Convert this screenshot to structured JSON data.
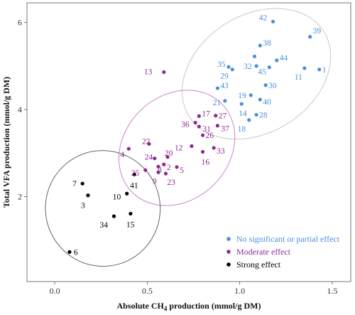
{
  "chart_data": {
    "type": "scatter",
    "xlabel": "Absolute CH4 production (mmol/g DM)",
    "xlabel_parts": {
      "prefix": "Absolute CH",
      "subscript": "4",
      "suffix": " production (mmol/g DM)"
    },
    "ylabel": "Total VFA production (mmol/g DM)",
    "xlim": [
      -0.15,
      1.6
    ],
    "ylim": [
      0.05,
      6.45
    ],
    "xticks": [
      0.0,
      0.5,
      1.0,
      1.5
    ],
    "xtick_labels": [
      "0.0",
      "0.5",
      "1.0",
      "1.5"
    ],
    "yticks": [
      2,
      4,
      6
    ],
    "ytick_labels": [
      "2",
      "4",
      "6"
    ],
    "grid": false,
    "legend_position": "bottom-right",
    "series": [
      {
        "name": "No significant or partial effect",
        "color": "#4A90D9",
        "ellipse_color": "#c8c8c8",
        "points": [
          {
            "label": "1",
            "x": 1.43,
            "y": 4.92
          },
          {
            "label": "11",
            "x": 1.35,
            "y": 4.95
          },
          {
            "label": "39",
            "x": 1.38,
            "y": 5.67
          },
          {
            "label": "42",
            "x": 1.18,
            "y": 6.02
          },
          {
            "label": "38",
            "x": 1.11,
            "y": 5.47
          },
          {
            "label": "44",
            "x": 1.2,
            "y": 5.13
          },
          {
            "label": "37b",
            "x": 1.08,
            "y": 5.22
          },
          {
            "label": "35",
            "x": 0.94,
            "y": 4.98
          },
          {
            "label": "32",
            "x": 1.09,
            "y": 5.0
          },
          {
            "label": "45",
            "x": 1.16,
            "y": 4.97
          },
          {
            "label": "29",
            "x": 0.96,
            "y": 4.92
          },
          {
            "label": "43",
            "x": 0.88,
            "y": 4.49
          },
          {
            "label": "30",
            "x": 1.14,
            "y": 4.56
          },
          {
            "label": "19",
            "x": 1.06,
            "y": 4.33
          },
          {
            "label": "40",
            "x": 1.11,
            "y": 4.23
          },
          {
            "label": "21",
            "x": 0.92,
            "y": 4.2
          },
          {
            "label": "14",
            "x": 1.01,
            "y": 4.13
          },
          {
            "label": "28",
            "x": 1.09,
            "y": 3.88
          },
          {
            "label": "18",
            "x": 1.05,
            "y": 3.76
          }
        ]
      },
      {
        "name": "Moderate effect",
        "color": "#8E2A8E",
        "ellipse_color": "#c987c9",
        "points": [
          {
            "label": "13",
            "x": 0.59,
            "y": 4.86
          },
          {
            "label": "17",
            "x": 0.78,
            "y": 3.85
          },
          {
            "label": "27",
            "x": 0.87,
            "y": 3.86
          },
          {
            "label": "36",
            "x": 0.76,
            "y": 3.7
          },
          {
            "label": "31",
            "x": 0.78,
            "y": 3.61
          },
          {
            "label": "37",
            "x": 0.88,
            "y": 3.63
          },
          {
            "label": "26",
            "x": 0.8,
            "y": 3.41
          },
          {
            "label": "12",
            "x": 0.74,
            "y": 3.16
          },
          {
            "label": "33",
            "x": 0.86,
            "y": 3.12
          },
          {
            "label": "16",
            "x": 0.8,
            "y": 3.03
          },
          {
            "label": "22",
            "x": 0.51,
            "y": 3.21
          },
          {
            "label": "4",
            "x": 0.4,
            "y": 3.1
          },
          {
            "label": "24",
            "x": 0.54,
            "y": 2.88
          },
          {
            "label": "20",
            "x": 0.61,
            "y": 2.91
          },
          {
            "label": "25",
            "x": 0.49,
            "y": 2.61
          },
          {
            "label": "8",
            "x": 0.56,
            "y": 2.69
          },
          {
            "label": "2",
            "x": 0.59,
            "y": 2.74
          },
          {
            "label": "5",
            "x": 0.66,
            "y": 2.68
          },
          {
            "label": "9",
            "x": 0.56,
            "y": 2.56
          },
          {
            "label": "23",
            "x": 0.6,
            "y": 2.53
          }
        ]
      },
      {
        "name": "Strong effect",
        "color": "#000000",
        "ellipse_color": "#666666",
        "points": [
          {
            "label": "41",
            "x": 0.43,
            "y": 2.51
          },
          {
            "label": "7",
            "x": 0.15,
            "y": 2.3
          },
          {
            "label": "10",
            "x": 0.39,
            "y": 2.07
          },
          {
            "label": "3",
            "x": 0.18,
            "y": 2.03
          },
          {
            "label": "34",
            "x": 0.32,
            "y": 1.55
          },
          {
            "label": "15",
            "x": 0.41,
            "y": 1.61
          },
          {
            "label": "6",
            "x": 0.08,
            "y": 0.73
          }
        ]
      }
    ],
    "ellipses": [
      {
        "series": "No significant or partial effect",
        "cx": 1.09,
        "cy": 4.82,
        "rx": 0.43,
        "ry": 1.35,
        "angle_deg": -32
      },
      {
        "series": "Moderate effect",
        "cx": 0.66,
        "cy": 3.12,
        "rx": 0.34,
        "ry": 1.2,
        "angle_deg": -44
      },
      {
        "series": "Strong effect",
        "cx": 0.26,
        "cy": 1.73,
        "rx": 0.31,
        "ry": 1.33,
        "angle_deg": -18
      }
    ]
  }
}
